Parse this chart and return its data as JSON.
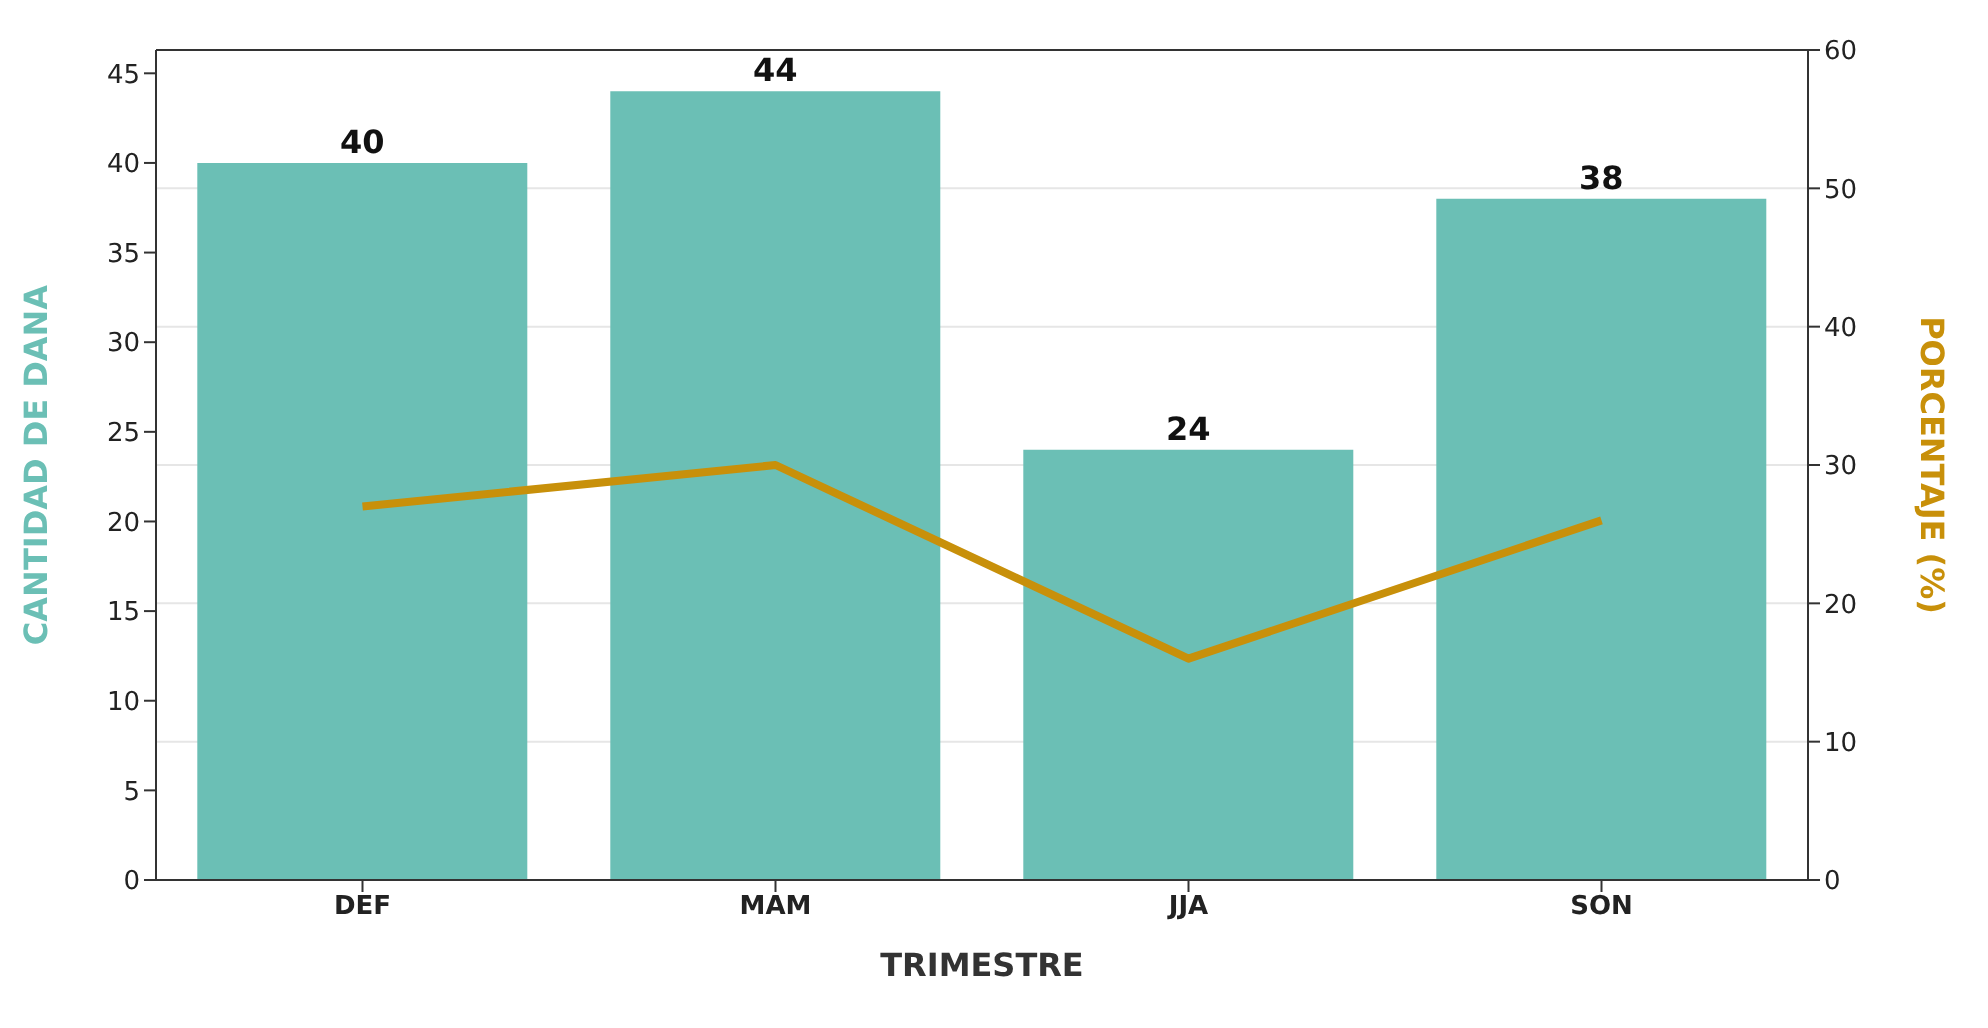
{
  "chart_data": {
    "type": "bar",
    "xlabel": "TRIMESTRE",
    "ylabel": "CANTIDAD DE DANA",
    "y2label": "PORCENTAJE (%)",
    "categories": [
      "DEF",
      "MAM",
      "JJA",
      "SON"
    ],
    "series": [
      {
        "color": "#6bbfb5",
        "values": [
          40,
          44,
          24,
          38
        ],
        "value_labels": [
          "40",
          "44",
          "24",
          "38"
        ]
      },
      {
        "type": "line",
        "axis": "y2",
        "color": "#c8900a",
        "values": [
          27,
          30,
          16,
          26
        ],
        "marker": "none",
        "line_style": "solid"
      }
    ],
    "ylim": [
      0,
      46.3
    ],
    "yticks": [
      0,
      5,
      10,
      15,
      20,
      25,
      30,
      35,
      40,
      45
    ],
    "y2lim": [
      0,
      60
    ],
    "y2ticks": [
      0,
      10,
      20,
      30,
      40,
      50,
      60
    ],
    "grid": "y2"
  }
}
